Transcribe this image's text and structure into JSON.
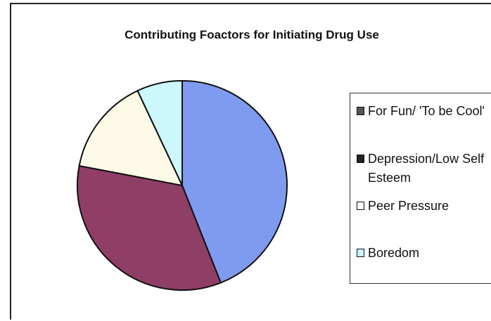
{
  "chart_data": {
    "type": "pie",
    "title": "Contributing Foactors for Initiating Drug Use",
    "categories": [
      "For Fun/ 'To be Cool'",
      "Depression/Low Self Esteem",
      "Peer Pressure",
      "Boredom"
    ],
    "values": [
      44,
      34,
      15,
      7
    ],
    "colors": [
      "#7f9bf0",
      "#8f3e66",
      "#fdfbe8",
      "#ccf7fd"
    ],
    "legend_placement": "right",
    "legend_swatch_colors": [
      "#555555",
      "#222222",
      "#ffffff",
      "#ccf7fd"
    ]
  }
}
